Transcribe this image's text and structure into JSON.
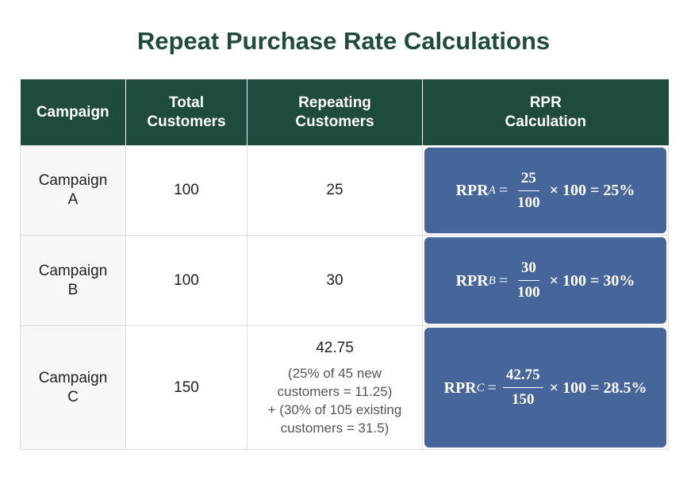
{
  "header": {
    "title": "Repeat Purchase Rate Calculations"
  },
  "table": {
    "columns": [
      "Campaign",
      "Total Customers",
      "Repeating Customers",
      "RPR Calculation"
    ],
    "rows": [
      {
        "campaign": "Campaign A",
        "total": "100",
        "repeating": "25",
        "rpr": {
          "prefix": "RPR",
          "sub": "A",
          "eq": "=",
          "num": "25",
          "den": "100",
          "rest": "× 100 = 25%"
        }
      },
      {
        "campaign": "Campaign B",
        "total": "100",
        "repeating": "30",
        "rpr": {
          "prefix": "RPR",
          "sub": "B",
          "eq": "=",
          "num": "30",
          "den": "100",
          "rest": "× 100 = 30%"
        }
      },
      {
        "campaign": "Campaign C",
        "total": "150",
        "repeating": "42.75",
        "note": [
          "(25% of 45 new",
          "customers = 11.25)",
          "+ (30% of 105 existing",
          "customers = 31.5)"
        ],
        "rpr": {
          "prefix": "RPR",
          "sub": "C",
          "eq": "=",
          "num": "42.75",
          "den": "150",
          "rest": "× 100 = 28.5%"
        }
      }
    ]
  }
}
